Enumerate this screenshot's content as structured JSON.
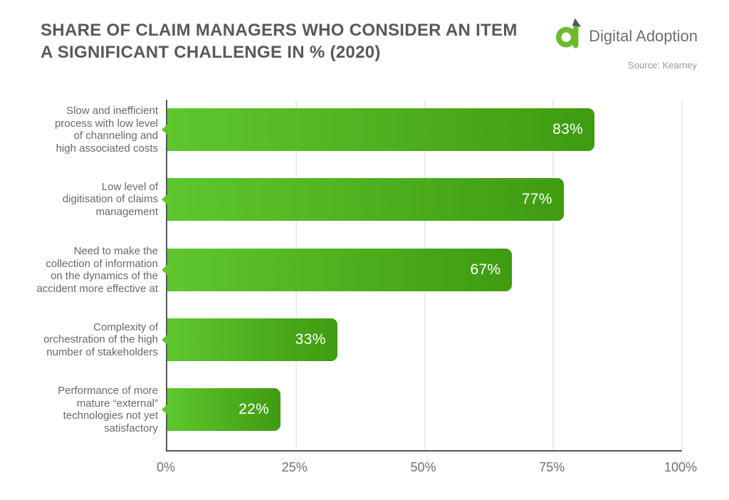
{
  "header": {
    "title_lines": [
      "SHARE OF CLAIM MANAGERS WHO CONSIDER AN ITEM",
      "A SIGNIFICANT CHALLENGE IN % (2020)"
    ],
    "brand_name": "Digital Adoption",
    "source": "Source: Kearney"
  },
  "colors": {
    "bar_gradient_start": "#5fc72d",
    "bar_gradient_end": "#3f9b10",
    "logo_green": "#6eb92c",
    "leaf_gray": "#58595b",
    "title_gray": "#58595b",
    "label_gray": "#68696b",
    "axis_gray": "#55565a",
    "gridline_gray": "#eaeaea",
    "value_text": "#ffffff"
  },
  "chart_data": {
    "type": "bar",
    "orientation": "horizontal",
    "title": "SHARE OF CLAIM MANAGERS WHO CONSIDER AN ITEM A SIGNIFICANT CHALLENGE IN % (2020)",
    "categories": [
      "Slow and inefficient process with low level of channeling and high associated costs",
      "Low level of digitisation of claims management",
      "Need to make the collection of information on the dynamics of the accident more effective at",
      "Complexity of orchestration of the high number of stakeholders",
      "Performance of more mature “external” technologies not yet satisfactory"
    ],
    "category_lines": [
      [
        "Slow and inefficient",
        "process with low level",
        "of channeling and",
        "high associated costs"
      ],
      [
        "Low level of",
        "digitisation of claims",
        "management"
      ],
      [
        "Need to make the",
        "collection of information",
        "on the dynamics of the",
        "accident more effective at"
      ],
      [
        "Complexity of",
        "orchestration of the high",
        "number of stakeholders"
      ],
      [
        "Performance of more",
        "mature “external”",
        "technologies not yet",
        "satisfactory"
      ]
    ],
    "values": [
      83,
      77,
      67,
      33,
      22
    ],
    "value_labels": [
      "83%",
      "77%",
      "67%",
      "33%",
      "22%"
    ],
    "xlabel": "",
    "ylabel": "",
    "xlim": [
      0,
      100
    ],
    "x_ticks": [
      "0%",
      "25%",
      "50%",
      "75%",
      "100%"
    ],
    "grid": "vertical",
    "legend": "none"
  }
}
